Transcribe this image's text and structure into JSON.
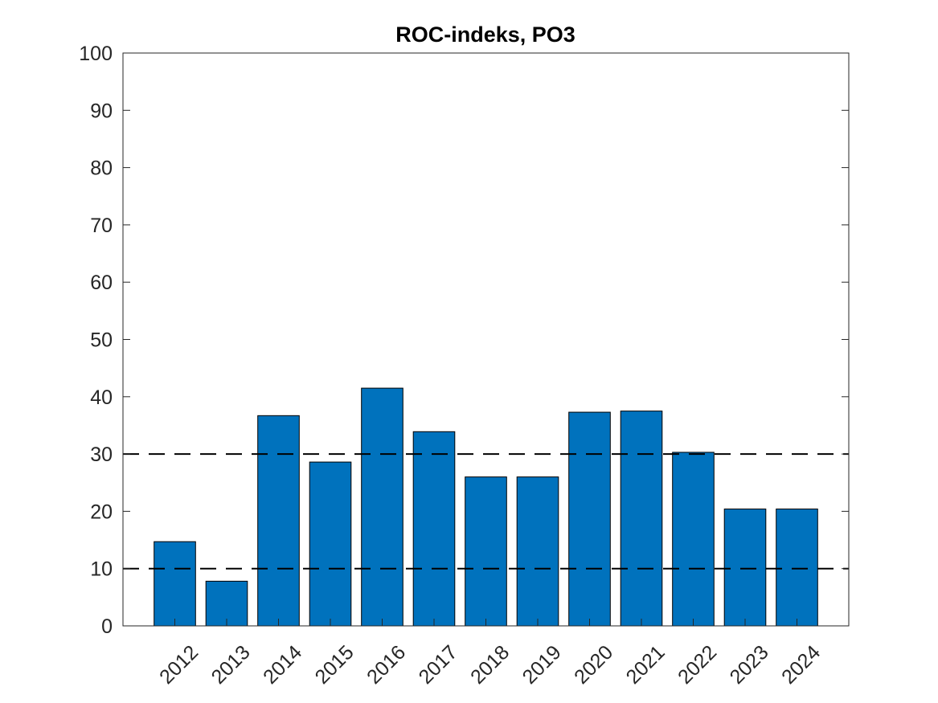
{
  "chart_data": {
    "type": "bar",
    "title": "ROC-indeks, PO3",
    "xlabel": "",
    "ylabel": "",
    "categories": [
      "2012",
      "2013",
      "2014",
      "2015",
      "2016",
      "2017",
      "2018",
      "2019",
      "2020",
      "2021",
      "2022",
      "2023",
      "2024"
    ],
    "values": [
      14.7,
      7.8,
      36.7,
      28.6,
      41.5,
      33.9,
      26.0,
      26.0,
      37.3,
      37.5,
      30.3,
      20.4,
      20.4
    ],
    "ylim": [
      0,
      100
    ],
    "yticks": [
      0,
      10,
      20,
      30,
      40,
      50,
      60,
      70,
      80,
      90,
      100
    ],
    "reference_lines": [
      10,
      30
    ],
    "reference_line_style": "dashed",
    "grid": false,
    "bar_color": "#0072BD",
    "bar_edge_color": "#000000"
  }
}
